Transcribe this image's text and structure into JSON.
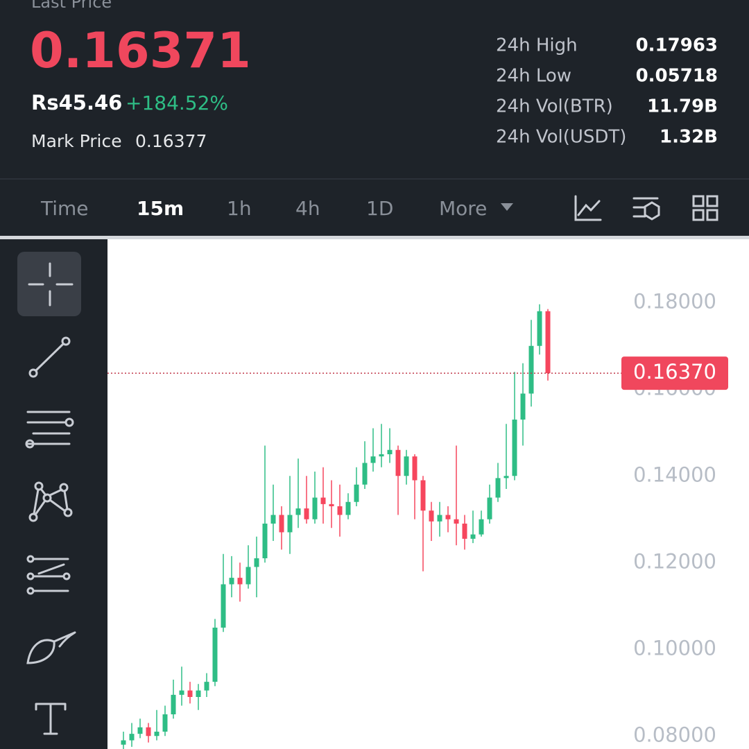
{
  "header": {
    "last_price_label": "Last Price",
    "last_price": "0.16371",
    "local_price": "Rs45.46",
    "change": "+184.52%",
    "mark_price_label": "Mark Price",
    "mark_price": "0.16377"
  },
  "stats": [
    {
      "label": "24h High",
      "value": "0.17963"
    },
    {
      "label": "24h Low",
      "value": "0.05718"
    },
    {
      "label": "24h Vol(BTR)",
      "value": "11.79B"
    },
    {
      "label": "24h Vol(USDT)",
      "value": "1.32B"
    }
  ],
  "tabs": [
    "Time",
    "15m",
    "1h",
    "4h",
    "1D",
    "More"
  ],
  "chart_data": {
    "type": "candlestick",
    "up_color": "#2ebd85",
    "down_color": "#f6465d",
    "open": [
      0.078,
      0.079,
      0.0805,
      0.082,
      0.08,
      0.081,
      0.085,
      0.0895,
      0.0905,
      0.089,
      0.0905,
      0.0925,
      0.105,
      0.115,
      0.1165,
      0.115,
      0.119,
      0.121,
      0.129,
      0.131,
      0.127,
      0.131,
      0.1325,
      0.13,
      0.135,
      0.1335,
      0.133,
      0.131,
      0.134,
      0.138,
      0.143,
      0.1445,
      0.145,
      0.146,
      0.14,
      0.1445,
      0.139,
      0.132,
      0.1295,
      0.131,
      0.13,
      0.129,
      0.1255,
      0.1265,
      0.13,
      0.135,
      0.1395,
      0.14,
      0.153,
      0.159,
      0.17,
      0.178
    ],
    "high": [
      0.081,
      0.083,
      0.084,
      0.083,
      0.086,
      0.087,
      0.093,
      0.096,
      0.0925,
      0.092,
      0.0945,
      0.107,
      0.122,
      0.1215,
      0.12,
      0.124,
      0.126,
      0.147,
      0.138,
      0.133,
      0.14,
      0.144,
      0.14,
      0.141,
      0.142,
      0.139,
      0.138,
      0.136,
      0.142,
      0.148,
      0.151,
      0.152,
      0.151,
      0.147,
      0.146,
      0.145,
      0.14,
      0.134,
      0.134,
      0.133,
      0.147,
      0.131,
      0.132,
      0.132,
      0.138,
      0.143,
      0.152,
      0.164,
      0.166,
      0.176,
      0.1796,
      0.1785
    ],
    "low": [
      0.077,
      0.0775,
      0.0795,
      0.0785,
      0.079,
      0.08,
      0.084,
      0.087,
      0.0875,
      0.086,
      0.089,
      0.0915,
      0.104,
      0.112,
      0.111,
      0.114,
      0.112,
      0.12,
      0.125,
      0.123,
      0.122,
      0.128,
      0.129,
      0.129,
      0.129,
      0.128,
      0.126,
      0.13,
      0.133,
      0.137,
      0.141,
      0.142,
      0.143,
      0.131,
      0.138,
      0.13,
      0.118,
      0.125,
      0.126,
      0.127,
      0.124,
      0.123,
      0.1245,
      0.126,
      0.129,
      0.134,
      0.137,
      0.139,
      0.147,
      0.156,
      0.168,
      0.162
    ],
    "close": [
      0.079,
      0.0805,
      0.082,
      0.08,
      0.081,
      0.085,
      0.0895,
      0.0905,
      0.089,
      0.0905,
      0.0925,
      0.105,
      0.115,
      0.1165,
      0.115,
      0.119,
      0.121,
      0.129,
      0.131,
      0.127,
      0.131,
      0.1325,
      0.13,
      0.135,
      0.1335,
      0.133,
      0.131,
      0.134,
      0.138,
      0.143,
      0.1445,
      0.145,
      0.146,
      0.14,
      0.1445,
      0.139,
      0.132,
      0.1295,
      0.131,
      0.13,
      0.129,
      0.1255,
      0.1265,
      0.13,
      0.135,
      0.1395,
      0.14,
      0.153,
      0.159,
      0.17,
      0.178,
      0.1637
    ],
    "ylim": [
      0.077,
      0.1946
    ],
    "yticks": [
      {
        "value": 0.08,
        "label": "0.08000"
      },
      {
        "value": 0.1,
        "label": "0.10000"
      },
      {
        "value": 0.12,
        "label": "0.12000"
      },
      {
        "value": 0.14,
        "label": "0.14000"
      },
      {
        "value": 0.16,
        "label": "0.16000"
      },
      {
        "value": 0.18,
        "label": "0.18000"
      }
    ],
    "current_price": {
      "value": 0.1637,
      "label": "0.16370"
    }
  }
}
